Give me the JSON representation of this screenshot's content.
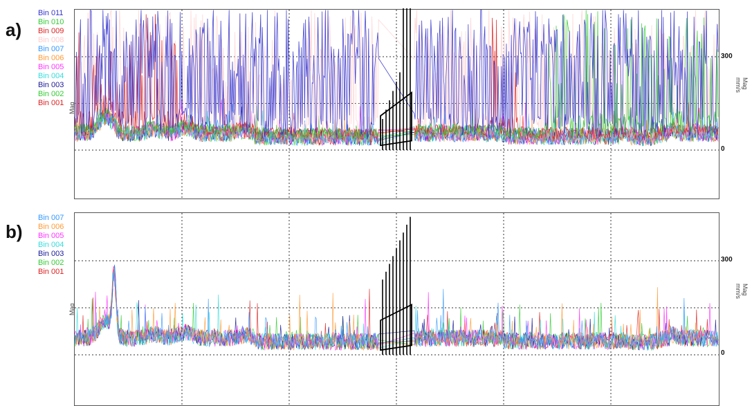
{
  "panels": [
    {
      "letter": "a)",
      "ylabel_left": "Mag",
      "ylabel_right": "Mag\nmm/s",
      "ticks": [
        "300",
        "0"
      ],
      "legend": [
        {
          "label": "Bin 011",
          "color": "#3333cc"
        },
        {
          "label": "Bin 010",
          "color": "#33cc33"
        },
        {
          "label": "Bin 009",
          "color": "#dd2222"
        },
        {
          "label": "Bin 008",
          "color": "#ffcccc"
        },
        {
          "label": "Bin 007",
          "color": "#3399ff"
        },
        {
          "label": "Bin 006",
          "color": "#ff9933"
        },
        {
          "label": "Bin 005",
          "color": "#ff33ff"
        },
        {
          "label": "Bin 004",
          "color": "#33dddd"
        },
        {
          "label": "Bin 003",
          "color": "#1a1a99"
        },
        {
          "label": "Bin 002",
          "color": "#33cc33"
        },
        {
          "label": "Bin 001",
          "color": "#dd2222"
        }
      ]
    },
    {
      "letter": "b)",
      "ylabel_left": "Mag",
      "ylabel_right": "Mag\nmm/s",
      "ticks": [
        "300",
        "0"
      ],
      "legend": [
        {
          "label": "Bin 007",
          "color": "#3399ff"
        },
        {
          "label": "Bin 006",
          "color": "#ff9933"
        },
        {
          "label": "Bin 005",
          "color": "#ff33ff"
        },
        {
          "label": "Bin 004",
          "color": "#33dddd"
        },
        {
          "label": "Bin 003",
          "color": "#1a1a99"
        },
        {
          "label": "Bin 002",
          "color": "#33cc33"
        },
        {
          "label": "Bin 001",
          "color": "#dd2222"
        }
      ]
    }
  ],
  "chart_data": [
    {
      "type": "line",
      "title": "",
      "ylabel": "Mag mm/s",
      "ylim": [
        0,
        450
      ],
      "yticks": [
        0,
        300
      ],
      "grid": true,
      "legend_position": "top-left",
      "series_names": [
        "Bin 011",
        "Bin 010",
        "Bin 009",
        "Bin 008",
        "Bin 007",
        "Bin 006",
        "Bin 005",
        "Bin 004",
        "Bin 003",
        "Bin 002",
        "Bin 001"
      ],
      "baseline_level_approx": 60,
      "upper_bins_clipped_at_top": true
    },
    {
      "type": "line",
      "title": "",
      "ylabel": "Mag mm/s",
      "ylim": [
        0,
        450
      ],
      "yticks": [
        0,
        300
      ],
      "grid": true,
      "legend_position": "top-left",
      "series_names": [
        "Bin 007",
        "Bin 006",
        "Bin 005",
        "Bin 004",
        "Bin 003",
        "Bin 002",
        "Bin 001"
      ],
      "baseline_level_approx": 60,
      "peak_approx": 440
    }
  ]
}
